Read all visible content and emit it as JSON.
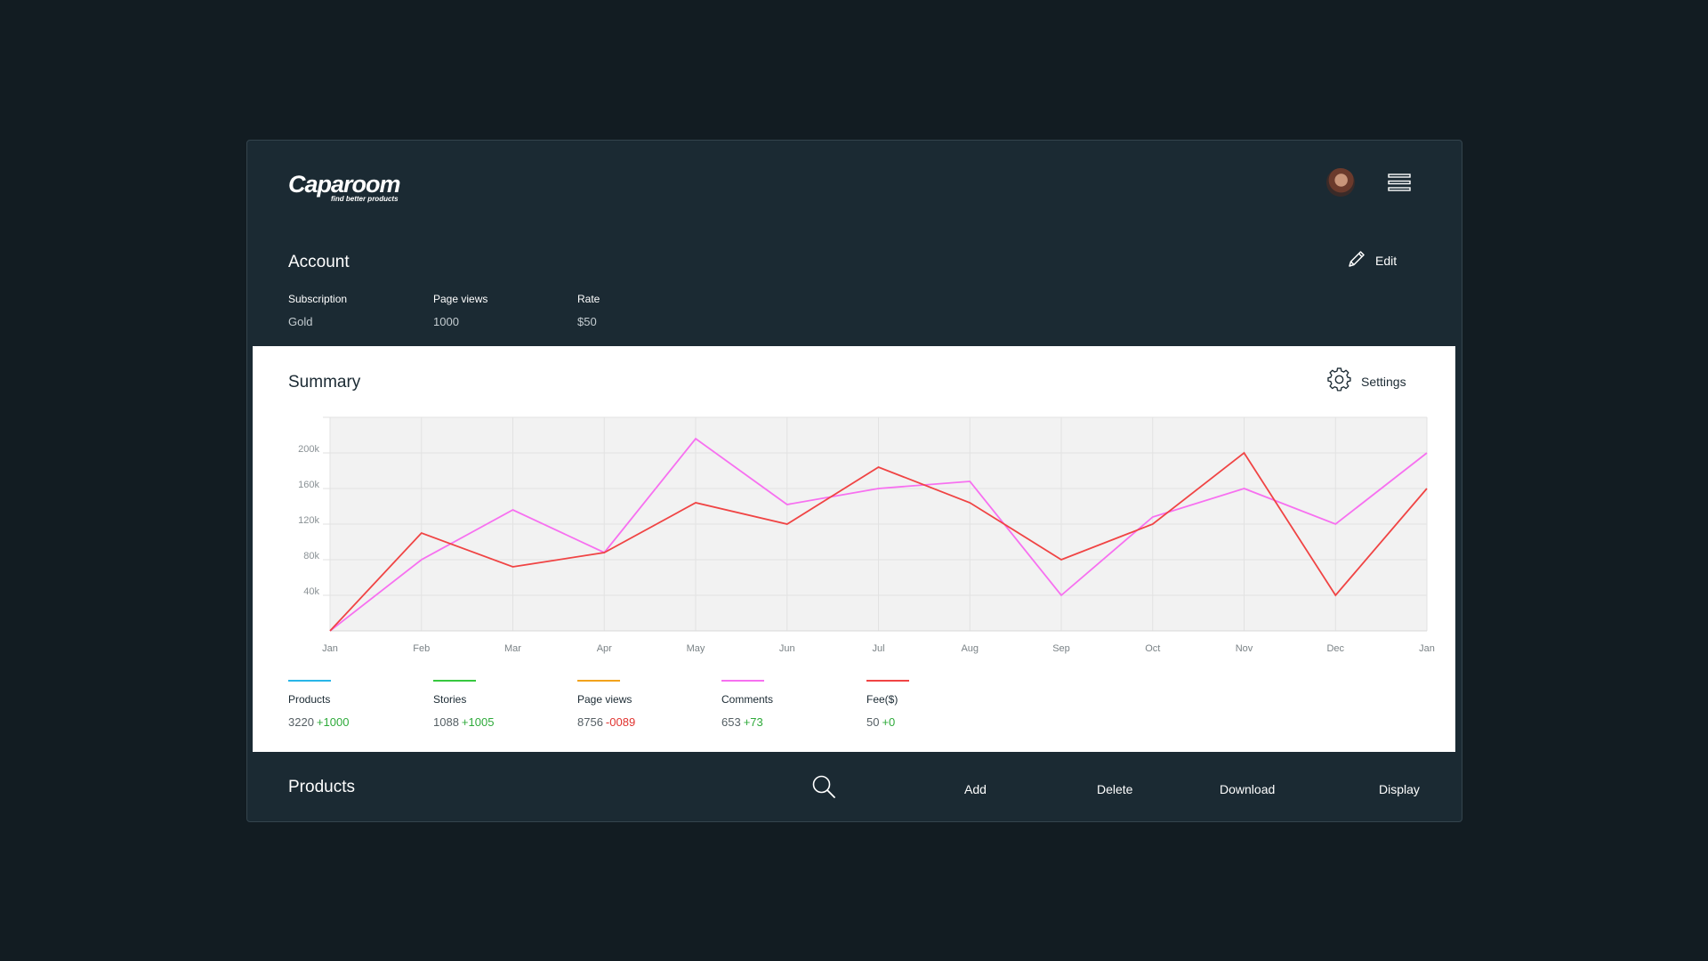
{
  "brand": {
    "name": "Caparoom",
    "tagline": "find better products"
  },
  "header": {
    "avatar_icon": "user-avatar",
    "menu_icon": "hamburger-menu-icon"
  },
  "account": {
    "title": "Account",
    "edit_label": "Edit",
    "fields": [
      {
        "label": "Subscription",
        "value": "Gold"
      },
      {
        "label": "Page views",
        "value": "1000"
      },
      {
        "label": "Rate",
        "value": "$50"
      }
    ]
  },
  "summary": {
    "title": "Summary",
    "settings_label": "Settings",
    "legend": [
      {
        "label": "Products",
        "value": "3220",
        "delta": "+1000",
        "color": "#29b6e8",
        "delta_color": "#2eaa3a"
      },
      {
        "label": "Stories",
        "value": "1088",
        "delta": "+1005",
        "color": "#37c83f",
        "delta_color": "#2eaa3a"
      },
      {
        "label": "Page views",
        "value": "8756",
        "delta": "-0089",
        "color": "#f2a31c",
        "delta_color": "#e0332f"
      },
      {
        "label": "Comments",
        "value": "653",
        "delta": "+73",
        "color": "#f770f0",
        "delta_color": "#2eaa3a"
      },
      {
        "label": "Fee($)",
        "value": "50",
        "delta": "+0",
        "color": "#f04444",
        "delta_color": "#2eaa3a"
      }
    ]
  },
  "chart_data": {
    "type": "line",
    "title": "Summary",
    "xlabel": "",
    "ylabel": "",
    "categories": [
      "Jan",
      "Feb",
      "Mar",
      "Apr",
      "May",
      "Jun",
      "Jul",
      "Aug",
      "Sep",
      "Oct",
      "Nov",
      "Dec",
      "Jan"
    ],
    "yticks": [
      40000,
      80000,
      120000,
      160000,
      200000
    ],
    "ytick_labels": [
      "40k",
      "80k",
      "120k",
      "160k",
      "200k"
    ],
    "ylim": [
      0,
      240000
    ],
    "grid": true,
    "series": [
      {
        "name": "Comments",
        "color": "#f770f0",
        "values": [
          0,
          80000,
          136000,
          88000,
          216000,
          142000,
          160000,
          168000,
          40000,
          128000,
          160000,
          120000,
          200000
        ]
      },
      {
        "name": "Fee($)",
        "color": "#f04444",
        "values": [
          0,
          110000,
          72000,
          88000,
          144000,
          120000,
          184000,
          144000,
          80000,
          120000,
          200000,
          40000,
          160000
        ]
      }
    ]
  },
  "products": {
    "title": "Products",
    "search_icon": "search-icon",
    "actions": [
      {
        "label": "Add"
      },
      {
        "label": "Delete"
      },
      {
        "label": "Download"
      },
      {
        "label": "Display"
      }
    ]
  }
}
